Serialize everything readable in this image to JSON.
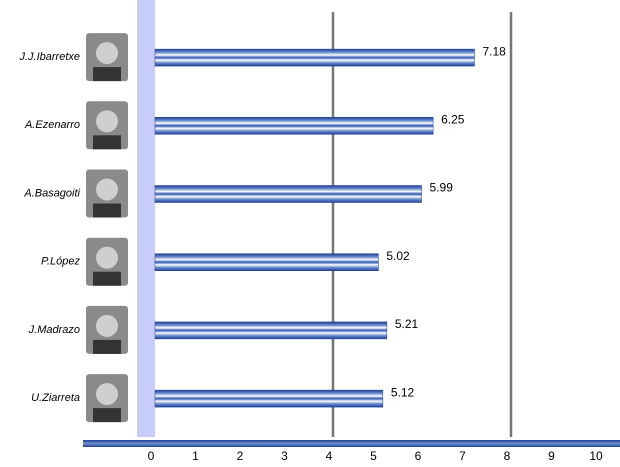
{
  "chart_data": {
    "type": "bar",
    "orientation": "horizontal",
    "categories": [
      "J.J.Ibarretxe",
      "A.Ezenarro",
      "A.Basagoiti",
      "P.López",
      "J.Madrazo",
      "U.Ziarreta"
    ],
    "values": [
      7.18,
      6.25,
      5.99,
      5.02,
      5.21,
      5.12
    ],
    "color": "#1c3f94",
    "xlim": [
      0,
      10
    ],
    "xticks": [
      0,
      1,
      2,
      3,
      4,
      5,
      6,
      7,
      8,
      9,
      10
    ],
    "gridlines": [
      4,
      8
    ]
  }
}
